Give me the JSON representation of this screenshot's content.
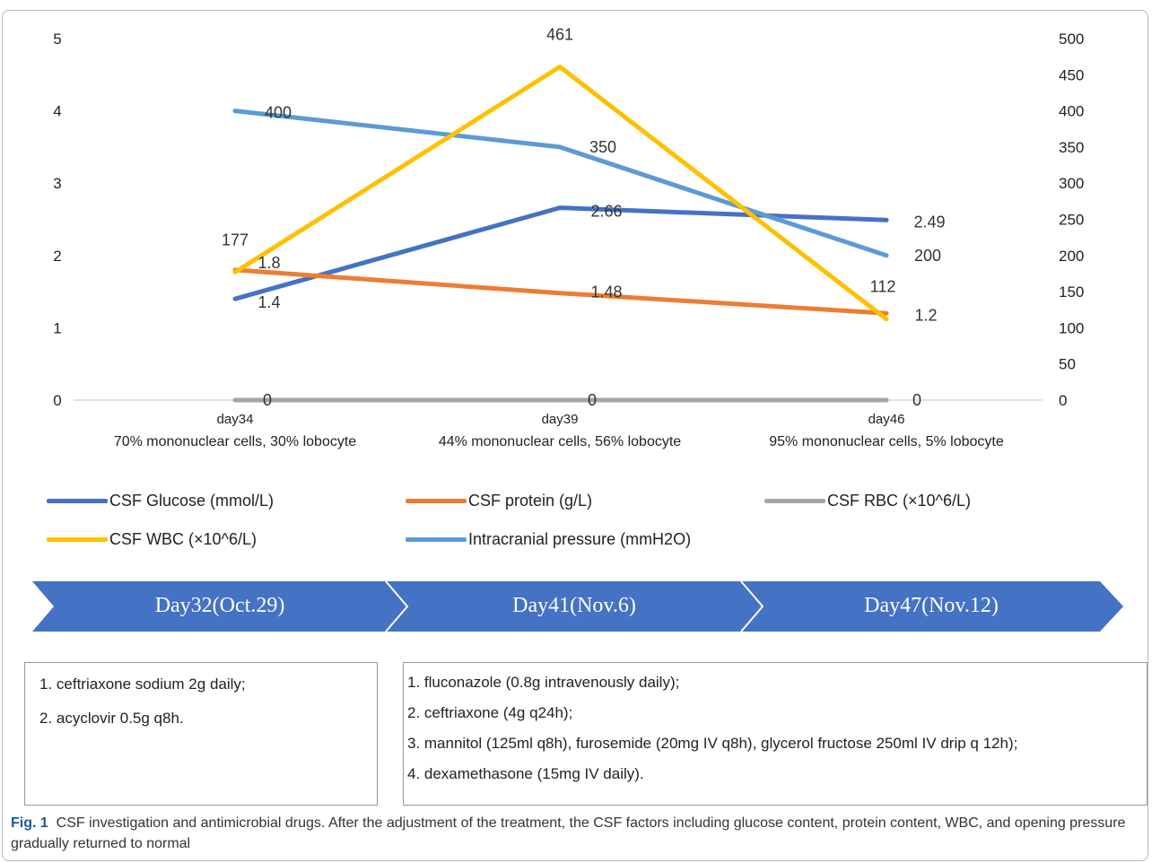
{
  "chart_data": {
    "type": "line",
    "categories": [
      "day34",
      "day39",
      "day46"
    ],
    "category_sublabels": [
      "70% mononuclear cells, 30% lobocyte",
      "44% mononuclear cells, 56% lobocyte",
      "95% mononuclear cells, 5% lobocyte"
    ],
    "y_left": {
      "range": [
        0,
        5
      ],
      "ticks": [
        "0",
        "1",
        "2",
        "3",
        "4",
        "5"
      ]
    },
    "y_right": {
      "range": [
        0,
        500
      ],
      "ticks": [
        "0",
        "50",
        "100",
        "150",
        "200",
        "250",
        "300",
        "350",
        "400",
        "450",
        "500"
      ]
    },
    "grid": false,
    "legend_position": "bottom",
    "series": [
      {
        "name": "CSF Glucose (mmol/L)",
        "axis": "left",
        "color": "#4472c4",
        "values": [
          1.4,
          2.66,
          2.49
        ],
        "labels": [
          "1.4",
          "2.66",
          "2.49"
        ]
      },
      {
        "name": "CSF protein (g/L)",
        "axis": "left",
        "color": "#ed7d31",
        "values": [
          1.8,
          1.48,
          1.2
        ],
        "labels": [
          "1.8",
          "1.48",
          "1.2"
        ]
      },
      {
        "name": "CSF RBC (×10^6/L)",
        "axis": "left",
        "color": "#a5a5a5",
        "values": [
          0,
          0,
          0
        ],
        "labels": [
          "0",
          "0",
          "0"
        ]
      },
      {
        "name": "CSF WBC (×10^6/L)",
        "axis": "right",
        "color": "#ffc000",
        "values": [
          177,
          461,
          112
        ],
        "labels": [
          "177",
          "461",
          "112"
        ]
      },
      {
        "name": "Intracranial pressure (mmH2O)",
        "axis": "right",
        "color": "#5b9bd5",
        "values": [
          400,
          350,
          200
        ],
        "labels": [
          "400",
          "350",
          "200"
        ]
      }
    ]
  },
  "timeline": {
    "color": "#4472c4",
    "segments": [
      "Day32(Oct.29)",
      "Day41(Nov.6)",
      "Day47(Nov.12)"
    ]
  },
  "treatments": {
    "box1": [
      "1. ceftriaxone sodium 2g daily;",
      "2. acyclovir 0.5g q8h."
    ],
    "box2": [
      "1. fluconazole (0.8g intravenously daily);",
      "2. ceftriaxone (4g q24h);",
      "3. mannitol (125ml q8h), furosemide (20mg IV q8h), glycerol fructose 250ml IV drip q 12h);",
      "4. dexamethasone (15mg IV daily)."
    ]
  },
  "caption": {
    "label": "Fig. 1",
    "text": "CSF investigation and antimicrobial drugs. After the adjustment of the treatment, the CSF factors including glucose content, protein content, WBC, and opening pressure gradually returned to normal"
  }
}
